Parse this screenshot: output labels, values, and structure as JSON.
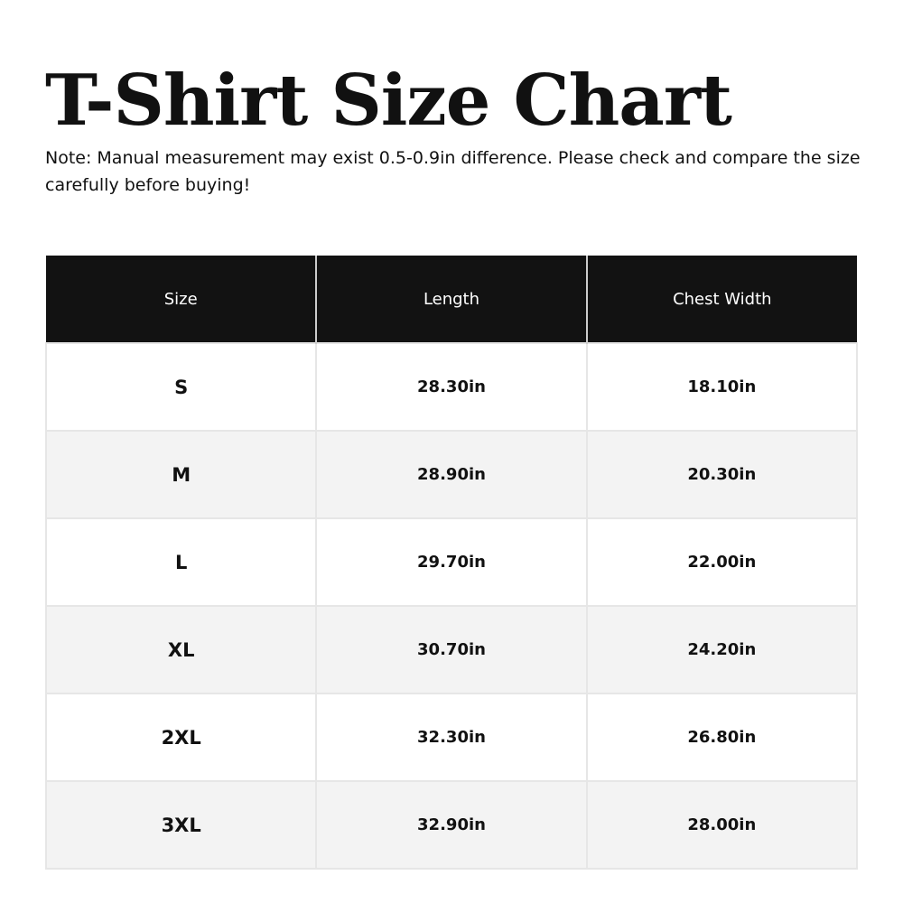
{
  "title": "T-Shirt Size Chart",
  "note": "Note: Manual measurement may exist 0.5-0.9in difference. Please check and compare the size carefully before buying!",
  "table": {
    "headers": [
      "Size",
      "Length",
      "Chest Width"
    ],
    "rows": [
      [
        "S",
        "28.30in",
        "18.10in"
      ],
      [
        "M",
        "28.90in",
        "20.30in"
      ],
      [
        "L",
        "29.70in",
        "22.00in"
      ],
      [
        "XL",
        "30.70in",
        "24.20in"
      ],
      [
        "2XL",
        "32.30in",
        "26.80in"
      ],
      [
        "3XL",
        "32.90in",
        "28.00in"
      ]
    ]
  },
  "colors": {
    "header_bg": "#121212",
    "alt_row_bg": "#f3f3f3"
  }
}
